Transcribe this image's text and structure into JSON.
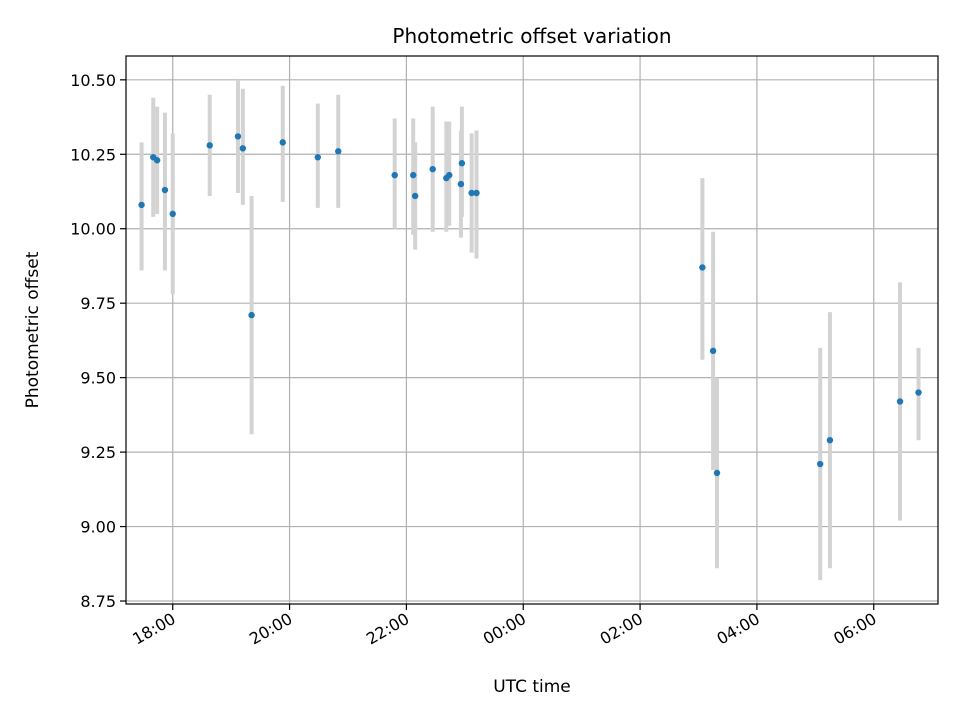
{
  "chart_data": {
    "type": "scatter",
    "title": "Photometric offset variation",
    "xlabel": "UTC time",
    "ylabel": "Photometric offset",
    "grid": true,
    "x_ticks": [
      "18:00",
      "20:00",
      "22:00",
      "00:00",
      "02:00",
      "04:00",
      "06:00"
    ],
    "y_ticks": [
      "8.75",
      "9.00",
      "9.25",
      "9.50",
      "9.75",
      "10.00",
      "10.25",
      "10.50"
    ],
    "xlim": [
      "17:12",
      "07:06"
    ],
    "ylim": [
      8.74,
      10.58
    ],
    "colors": {
      "point": "#1f77b4",
      "errorbar": "#d3d3d3",
      "grid": "#b0b0b0"
    },
    "points": [
      {
        "x": "17:28",
        "y": 10.08,
        "yerr_low": 9.86,
        "yerr_high": 10.29
      },
      {
        "x": "17:40",
        "y": 10.24,
        "yerr_low": 10.04,
        "yerr_high": 10.44
      },
      {
        "x": "17:44",
        "y": 10.23,
        "yerr_low": 10.05,
        "yerr_high": 10.41
      },
      {
        "x": "17:52",
        "y": 10.13,
        "yerr_low": 9.86,
        "yerr_high": 10.39
      },
      {
        "x": "18:00",
        "y": 10.05,
        "yerr_low": 9.78,
        "yerr_high": 10.32
      },
      {
        "x": "18:38",
        "y": 10.28,
        "yerr_low": 10.11,
        "yerr_high": 10.45
      },
      {
        "x": "19:07",
        "y": 10.31,
        "yerr_low": 10.12,
        "yerr_high": 10.5
      },
      {
        "x": "19:12",
        "y": 10.27,
        "yerr_low": 10.08,
        "yerr_high": 10.47
      },
      {
        "x": "19:21",
        "y": 9.71,
        "yerr_low": 9.31,
        "yerr_high": 10.11
      },
      {
        "x": "19:53",
        "y": 10.29,
        "yerr_low": 10.09,
        "yerr_high": 10.48
      },
      {
        "x": "20:29",
        "y": 10.24,
        "yerr_low": 10.07,
        "yerr_high": 10.42
      },
      {
        "x": "20:50",
        "y": 10.26,
        "yerr_low": 10.07,
        "yerr_high": 10.45
      },
      {
        "x": "21:48",
        "y": 10.18,
        "yerr_low": 10.0,
        "yerr_high": 10.37
      },
      {
        "x": "22:07",
        "y": 10.18,
        "yerr_low": 9.98,
        "yerr_high": 10.37
      },
      {
        "x": "22:09",
        "y": 10.11,
        "yerr_low": 9.93,
        "yerr_high": 10.29
      },
      {
        "x": "22:27",
        "y": 10.2,
        "yerr_low": 9.99,
        "yerr_high": 10.41
      },
      {
        "x": "22:41",
        "y": 10.17,
        "yerr_low": 9.99,
        "yerr_high": 10.36
      },
      {
        "x": "22:44",
        "y": 10.18,
        "yerr_low": 10.01,
        "yerr_high": 10.36
      },
      {
        "x": "22:56",
        "y": 10.15,
        "yerr_low": 9.97,
        "yerr_high": 10.33
      },
      {
        "x": "22:57",
        "y": 10.22,
        "yerr_low": 10.04,
        "yerr_high": 10.41
      },
      {
        "x": "23:07",
        "y": 10.12,
        "yerr_low": 9.92,
        "yerr_high": 10.32
      },
      {
        "x": "23:12",
        "y": 10.12,
        "yerr_low": 9.9,
        "yerr_high": 10.33
      },
      {
        "x": "03:04",
        "y": 9.87,
        "yerr_low": 9.56,
        "yerr_high": 10.17
      },
      {
        "x": "03:15",
        "y": 9.59,
        "yerr_low": 9.19,
        "yerr_high": 9.99
      },
      {
        "x": "03:19",
        "y": 9.18,
        "yerr_low": 8.86,
        "yerr_high": 9.5
      },
      {
        "x": "05:05",
        "y": 9.21,
        "yerr_low": 8.82,
        "yerr_high": 9.6
      },
      {
        "x": "05:15",
        "y": 9.29,
        "yerr_low": 8.86,
        "yerr_high": 9.72
      },
      {
        "x": "06:27",
        "y": 9.42,
        "yerr_low": 9.02,
        "yerr_high": 9.82
      },
      {
        "x": "06:46",
        "y": 9.45,
        "yerr_low": 9.29,
        "yerr_high": 9.6
      }
    ]
  }
}
